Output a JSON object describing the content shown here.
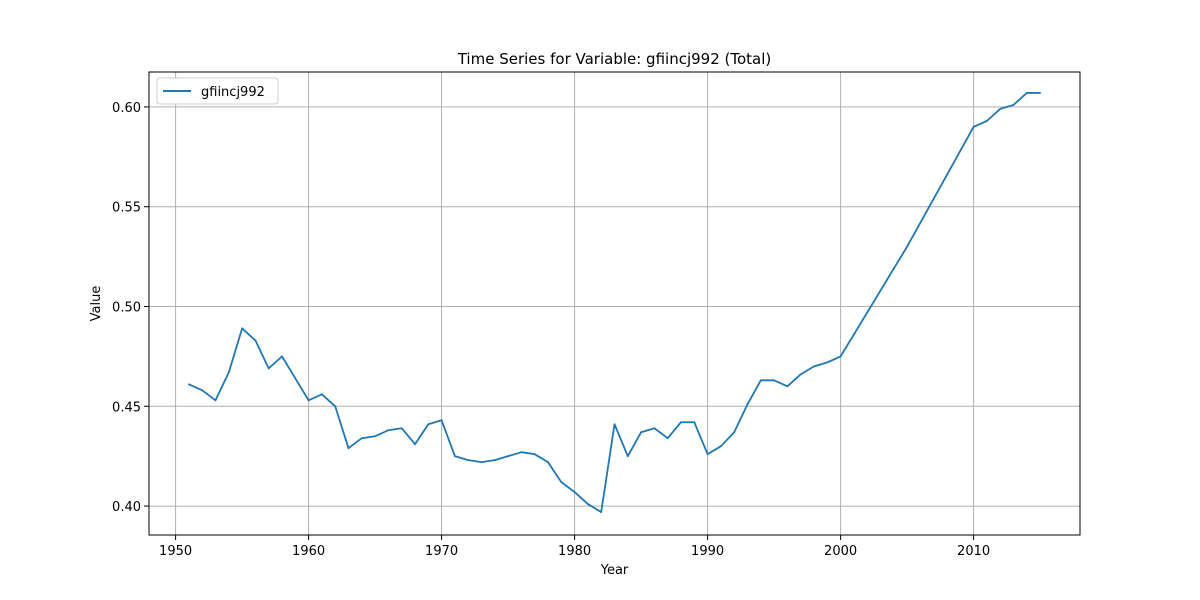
{
  "chart_data": {
    "type": "line",
    "title": "Time Series for Variable: gfiincj992 (Total)",
    "xlabel": "Year",
    "ylabel": "Value",
    "xlim": [
      1948,
      2018
    ],
    "ylim": [
      0.3855,
      0.6175
    ],
    "xticks": [
      1950,
      1960,
      1970,
      1980,
      1990,
      2000,
      2010
    ],
    "yticks": [
      0.4,
      0.45,
      0.5,
      0.55,
      0.6
    ],
    "ytick_labels": [
      "0.40",
      "0.45",
      "0.50",
      "0.55",
      "0.60"
    ],
    "grid": true,
    "legend_position": "top-left",
    "colors": {
      "series": "#1f77b4",
      "grid": "#b0b0b0"
    },
    "series": [
      {
        "name": "gfiincj992",
        "x": [
          1951,
          1952,
          1953,
          1954,
          1955,
          1956,
          1957,
          1958,
          1959,
          1960,
          1961,
          1962,
          1963,
          1964,
          1965,
          1966,
          1967,
          1968,
          1969,
          1970,
          1971,
          1972,
          1973,
          1974,
          1975,
          1976,
          1977,
          1978,
          1979,
          1980,
          1981,
          1982,
          1983,
          1984,
          1985,
          1986,
          1987,
          1988,
          1989,
          1990,
          1991,
          1992,
          1993,
          1994,
          1995,
          1996,
          1997,
          1998,
          1999,
          2000,
          2001,
          2002,
          2003,
          2004,
          2005,
          2006,
          2007,
          2008,
          2009,
          2010,
          2011,
          2012,
          2013,
          2014,
          2015
        ],
        "y": [
          0.461,
          0.458,
          0.453,
          0.467,
          0.489,
          0.483,
          0.469,
          0.475,
          0.464,
          0.453,
          0.456,
          0.45,
          0.429,
          0.434,
          0.435,
          0.438,
          0.439,
          0.431,
          0.441,
          0.443,
          0.425,
          0.423,
          0.422,
          0.423,
          0.425,
          0.427,
          0.426,
          0.422,
          0.412,
          0.407,
          0.401,
          0.397,
          0.441,
          0.425,
          0.437,
          0.439,
          0.434,
          0.442,
          0.442,
          0.426,
          0.43,
          0.437,
          0.451,
          0.463,
          0.463,
          0.46,
          0.466,
          0.47,
          0.472,
          0.475,
          0.486,
          0.497,
          0.508,
          0.519,
          0.53,
          0.542,
          0.554,
          0.566,
          0.578,
          0.59,
          0.593,
          0.599,
          0.601,
          0.607,
          0.607
        ]
      }
    ]
  }
}
